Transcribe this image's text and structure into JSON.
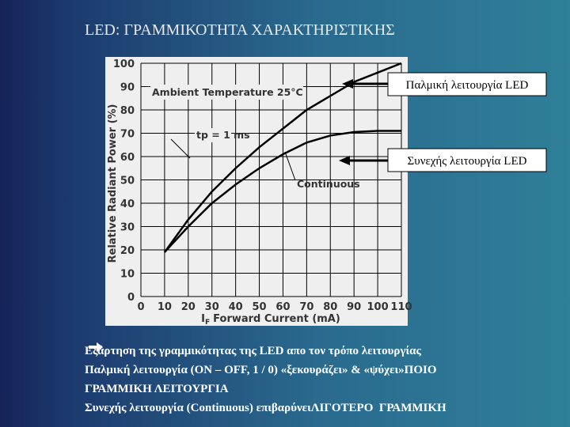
{
  "title": "LED:  ΓΡΑΜΜΙΚΟΤΗΤΑ   ΧΑΡΑΚΤΗΡΙΣΤΙΚΗΣ",
  "callouts": [
    "Παλμική λειτουργία LED",
    "Συνεχής λειτουργία LED"
  ],
  "notes": [
    [
      "Εξάρτηση της γραμμικότητας της LED απο τον τρόπο λειτουργίας"
    ],
    [
      "Παλμική λειτουργία (ON – OFF, 1 / 0) «ξεκουράζει» & «ψύχει»",
      "ΠΟΙΟ"
    ],
    [
      "ΓΡΑΜΜΙΚΗ ΛΕΙΤΟΥΡΓΙΑ"
    ],
    [
      "Συνεχής λειτουργία (Continuous) επιβαρύνει",
      "ΛΙΓΟΤΕΡΟ  ΓΡΑΜΜΙΚΗ"
    ]
  ],
  "chart_data": {
    "type": "line",
    "annotation": "Ambient Temperature 25°C",
    "y_label": "Relative Radiant Power (%)",
    "x_label_symbol": "I",
    "x_label_subscript": "F",
    "x_label": "Forward Current (mA)",
    "x": [
      10,
      20,
      30,
      40,
      50,
      60,
      70,
      80,
      90,
      100,
      110
    ],
    "series": [
      {
        "name": "tp = 1 ms",
        "color": "#000000",
        "values": [
          19,
          33,
          45,
          55,
          64,
          72,
          80,
          86,
          92,
          96,
          100
        ]
      },
      {
        "name": "Continuous",
        "color": "#000000",
        "values": [
          19,
          30,
          40,
          48,
          55,
          61,
          66,
          69,
          70.5,
          71,
          71
        ]
      }
    ],
    "xlim": [
      0,
      110
    ],
    "xticks": [
      0,
      10,
      20,
      30,
      40,
      50,
      60,
      70,
      80,
      90,
      100,
      110
    ],
    "ylim": [
      0,
      100
    ],
    "yticks": [
      0,
      10,
      20,
      30,
      40,
      50,
      60,
      70,
      80,
      90,
      100
    ],
    "grid": true
  }
}
